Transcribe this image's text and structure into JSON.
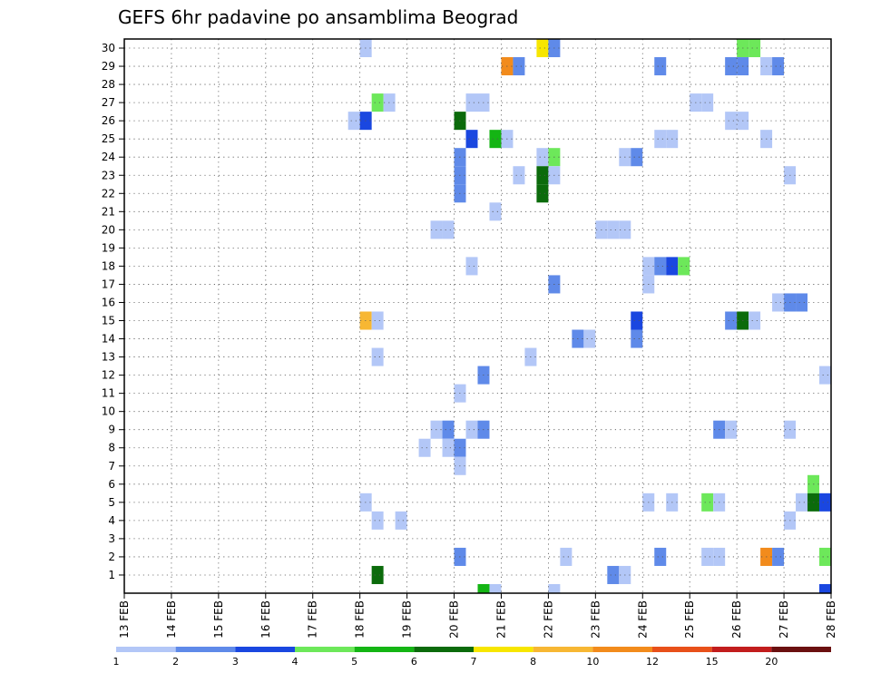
{
  "chart_data": {
    "type": "heatmap",
    "title": "GEFS 6hr padavine po ansamblima Beograd",
    "x_categories": [
      "13 FEB",
      "14 FEB",
      "15 FEB",
      "16 FEB",
      "17 FEB",
      "18 FEB",
      "19 FEB",
      "20 FEB",
      "21 FEB",
      "22 FEB",
      "23 FEB",
      "24 FEB",
      "25 FEB",
      "26 FEB",
      "27 FEB",
      "28 FEB"
    ],
    "y_ticks": [
      1,
      2,
      3,
      4,
      5,
      6,
      7,
      8,
      9,
      10,
      11,
      12,
      13,
      14,
      15,
      16,
      17,
      18,
      19,
      20,
      21,
      22,
      23,
      24,
      25,
      26,
      27,
      28,
      29,
      30
    ],
    "ylim": [
      0,
      30
    ],
    "time_step_hours": 6,
    "grid": true,
    "colorbar": {
      "labels": [
        "1",
        "2",
        "3",
        "4",
        "5",
        "6",
        "7",
        "8",
        "10",
        "12",
        "15",
        "20"
      ],
      "colors": [
        "#b3c7f7",
        "#5f8ae9",
        "#1a47e0",
        "#6de85a",
        "#14b514",
        "#0b6b0b",
        "#f7e600",
        "#f7b733",
        "#f28b1c",
        "#e8501a",
        "#c21d1d",
        "#6b1010"
      ]
    },
    "cells": [
      {
        "member": 30,
        "step": 20,
        "cls": 1
      },
      {
        "member": 30,
        "step": 35,
        "cls": 7
      },
      {
        "member": 30,
        "step": 36,
        "cls": 2
      },
      {
        "member": 30,
        "step": 52,
        "cls": 4
      },
      {
        "member": 30,
        "step": 53,
        "cls": 4
      },
      {
        "member": 29,
        "step": 32,
        "cls": 9
      },
      {
        "member": 29,
        "step": 33,
        "cls": 2
      },
      {
        "member": 29,
        "step": 45,
        "cls": 2
      },
      {
        "member": 29,
        "step": 51,
        "cls": 2
      },
      {
        "member": 29,
        "step": 52,
        "cls": 2
      },
      {
        "member": 29,
        "step": 54,
        "cls": 1
      },
      {
        "member": 29,
        "step": 55,
        "cls": 2
      },
      {
        "member": 27,
        "step": 21,
        "cls": 4
      },
      {
        "member": 27,
        "step": 22,
        "cls": 1
      },
      {
        "member": 27,
        "step": 29,
        "cls": 1
      },
      {
        "member": 27,
        "step": 30,
        "cls": 1
      },
      {
        "member": 27,
        "step": 48,
        "cls": 1
      },
      {
        "member": 27,
        "step": 49,
        "cls": 1
      },
      {
        "member": 26,
        "step": 19,
        "cls": 1
      },
      {
        "member": 26,
        "step": 20,
        "cls": 3
      },
      {
        "member": 26,
        "step": 28,
        "cls": 6
      },
      {
        "member": 26,
        "step": 51,
        "cls": 1
      },
      {
        "member": 26,
        "step": 52,
        "cls": 1
      },
      {
        "member": 25,
        "step": 29,
        "cls": 3
      },
      {
        "member": 25,
        "step": 31,
        "cls": 5
      },
      {
        "member": 25,
        "step": 32,
        "cls": 1
      },
      {
        "member": 25,
        "step": 45,
        "cls": 1
      },
      {
        "member": 25,
        "step": 46,
        "cls": 1
      },
      {
        "member": 25,
        "step": 54,
        "cls": 1
      },
      {
        "member": 24,
        "step": 28,
        "cls": 2
      },
      {
        "member": 24,
        "step": 35,
        "cls": 1
      },
      {
        "member": 24,
        "step": 36,
        "cls": 4
      },
      {
        "member": 24,
        "step": 42,
        "cls": 1
      },
      {
        "member": 24,
        "step": 43,
        "cls": 2
      },
      {
        "member": 23,
        "step": 28,
        "cls": 2
      },
      {
        "member": 23,
        "step": 33,
        "cls": 1
      },
      {
        "member": 23,
        "step": 35,
        "cls": 6
      },
      {
        "member": 23,
        "step": 36,
        "cls": 1
      },
      {
        "member": 23,
        "step": 56,
        "cls": 1
      },
      {
        "member": 22,
        "step": 28,
        "cls": 2
      },
      {
        "member": 22,
        "step": 35,
        "cls": 6
      },
      {
        "member": 21,
        "step": 31,
        "cls": 1
      },
      {
        "member": 20,
        "step": 26,
        "cls": 1
      },
      {
        "member": 20,
        "step": 27,
        "cls": 1
      },
      {
        "member": 20,
        "step": 40,
        "cls": 1
      },
      {
        "member": 20,
        "step": 41,
        "cls": 1
      },
      {
        "member": 20,
        "step": 42,
        "cls": 1
      },
      {
        "member": 18,
        "step": 29,
        "cls": 1
      },
      {
        "member": 18,
        "step": 44,
        "cls": 1
      },
      {
        "member": 18,
        "step": 45,
        "cls": 2
      },
      {
        "member": 18,
        "step": 46,
        "cls": 3
      },
      {
        "member": 18,
        "step": 47,
        "cls": 4
      },
      {
        "member": 17,
        "step": 36,
        "cls": 2
      },
      {
        "member": 17,
        "step": 44,
        "cls": 1
      },
      {
        "member": 16,
        "step": 55,
        "cls": 1
      },
      {
        "member": 16,
        "step": 56,
        "cls": 2
      },
      {
        "member": 16,
        "step": 57,
        "cls": 2
      },
      {
        "member": 15,
        "step": 20,
        "cls": 8
      },
      {
        "member": 15,
        "step": 21,
        "cls": 1
      },
      {
        "member": 15,
        "step": 43,
        "cls": 3
      },
      {
        "member": 15,
        "step": 51,
        "cls": 2
      },
      {
        "member": 15,
        "step": 52,
        "cls": 6
      },
      {
        "member": 15,
        "step": 53,
        "cls": 1
      },
      {
        "member": 14,
        "step": 38,
        "cls": 2
      },
      {
        "member": 14,
        "step": 39,
        "cls": 1
      },
      {
        "member": 14,
        "step": 43,
        "cls": 2
      },
      {
        "member": 13,
        "step": 21,
        "cls": 1
      },
      {
        "member": 13,
        "step": 34,
        "cls": 1
      },
      {
        "member": 12,
        "step": 30,
        "cls": 2
      },
      {
        "member": 12,
        "step": 59,
        "cls": 1
      },
      {
        "member": 11,
        "step": 28,
        "cls": 1
      },
      {
        "member": 9,
        "step": 26,
        "cls": 1
      },
      {
        "member": 9,
        "step": 27,
        "cls": 2
      },
      {
        "member": 9,
        "step": 29,
        "cls": 1
      },
      {
        "member": 9,
        "step": 30,
        "cls": 2
      },
      {
        "member": 9,
        "step": 50,
        "cls": 2
      },
      {
        "member": 9,
        "step": 51,
        "cls": 1
      },
      {
        "member": 9,
        "step": 56,
        "cls": 1
      },
      {
        "member": 8,
        "step": 25,
        "cls": 1
      },
      {
        "member": 8,
        "step": 27,
        "cls": 1
      },
      {
        "member": 8,
        "step": 28,
        "cls": 2
      },
      {
        "member": 7,
        "step": 28,
        "cls": 1
      },
      {
        "member": 6,
        "step": 58,
        "cls": 4
      },
      {
        "member": 5,
        "step": 20,
        "cls": 1
      },
      {
        "member": 5,
        "step": 44,
        "cls": 1
      },
      {
        "member": 5,
        "step": 46,
        "cls": 1
      },
      {
        "member": 5,
        "step": 49,
        "cls": 4
      },
      {
        "member": 5,
        "step": 50,
        "cls": 1
      },
      {
        "member": 5,
        "step": 57,
        "cls": 1
      },
      {
        "member": 5,
        "step": 58,
        "cls": 6
      },
      {
        "member": 5,
        "step": 59,
        "cls": 3
      },
      {
        "member": 4,
        "step": 21,
        "cls": 1
      },
      {
        "member": 4,
        "step": 23,
        "cls": 1
      },
      {
        "member": 4,
        "step": 56,
        "cls": 1
      },
      {
        "member": 2,
        "step": 28,
        "cls": 2
      },
      {
        "member": 2,
        "step": 37,
        "cls": 1
      },
      {
        "member": 2,
        "step": 45,
        "cls": 2
      },
      {
        "member": 2,
        "step": 49,
        "cls": 1
      },
      {
        "member": 2,
        "step": 50,
        "cls": 1
      },
      {
        "member": 2,
        "step": 54,
        "cls": 9
      },
      {
        "member": 2,
        "step": 55,
        "cls": 2
      },
      {
        "member": 2,
        "step": 59,
        "cls": 4
      },
      {
        "member": 1,
        "step": 21,
        "cls": 6
      },
      {
        "member": 1,
        "step": 41,
        "cls": 2
      },
      {
        "member": 1,
        "step": 42,
        "cls": 1
      },
      {
        "member": 0,
        "step": 30,
        "cls": 5
      },
      {
        "member": 0,
        "step": 31,
        "cls": 1
      },
      {
        "member": 0,
        "step": 36,
        "cls": 1
      },
      {
        "member": 0,
        "step": 59,
        "cls": 3
      }
    ]
  }
}
